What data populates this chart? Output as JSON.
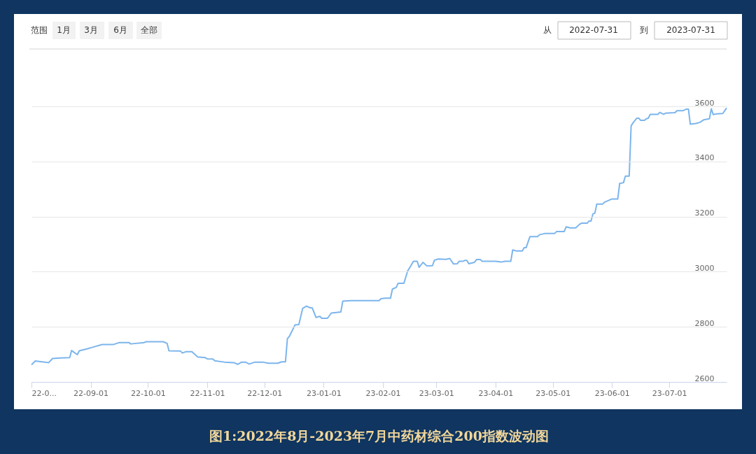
{
  "chart_data": {
    "type": "line",
    "title": "图1:2022年8月-2023年7月中药材综合200指数波动图",
    "annotations": [
      "范围",
      "1月",
      "3月",
      "6月",
      "全部",
      "从",
      "2022-07-31",
      "到",
      "2023-07-31"
    ],
    "xlim": [
      "2022-08-01",
      "2023-07-31"
    ],
    "xticks": [
      {
        "value": "2022-08-01",
        "label": "22-0..."
      },
      {
        "value": "2022-09-01",
        "label": "22-09-01"
      },
      {
        "value": "2022-10-01",
        "label": "22-10-01"
      },
      {
        "value": "2022-11-01",
        "label": "22-11-01"
      },
      {
        "value": "2022-12-01",
        "label": "22-12-01"
      },
      {
        "value": "2023-01-01",
        "label": "23-01-01"
      },
      {
        "value": "2023-02-01",
        "label": "23-02-01"
      },
      {
        "value": "2023-03-01",
        "label": "23-03-01"
      },
      {
        "value": "2023-04-01",
        "label": "23-04-01"
      },
      {
        "value": "2023-05-01",
        "label": "23-05-01"
      },
      {
        "value": "2023-06-01",
        "label": "23-06-01"
      },
      {
        "value": "2023-07-01",
        "label": "23-07-01"
      }
    ],
    "ylim": [
      2600,
      3600
    ],
    "yticks": [
      2600,
      2800,
      3000,
      3200,
      3400,
      3600
    ],
    "grid": "y",
    "legend": false,
    "marker": "none",
    "line_style": "solid",
    "x": [
      "2022-08-01",
      "2022-08-03",
      "2022-08-08",
      "2022-08-10",
      "2022-08-12",
      "2022-08-16",
      "2022-08-21",
      "2022-08-22",
      "2022-08-25",
      "2022-08-26",
      "2022-08-30",
      "2022-09-02",
      "2022-09-07",
      "2022-09-13",
      "2022-09-16",
      "2022-09-21",
      "2022-09-22",
      "2022-09-29",
      "2022-09-30",
      "2022-10-09",
      "2022-10-11",
      "2022-10-12",
      "2022-10-18",
      "2022-10-19",
      "2022-10-21",
      "2022-10-24",
      "2022-10-27",
      "2022-10-31",
      "2022-11-01",
      "2022-11-04",
      "2022-11-05",
      "2022-11-10",
      "2022-11-15",
      "2022-11-17",
      "2022-11-19",
      "2022-11-21",
      "2022-11-23",
      "2022-11-26",
      "2022-11-30",
      "2022-12-03",
      "2022-12-08",
      "2022-12-10",
      "2022-12-12",
      "2022-12-13",
      "2022-12-14",
      "2022-12-17",
      "2022-12-19",
      "2022-12-21",
      "2022-12-23",
      "2022-12-25",
      "2022-12-26",
      "2022-12-28",
      "2022-12-30",
      "2022-12-31",
      "2023-01-03",
      "2023-01-05",
      "2023-01-10",
      "2023-01-11",
      "2023-01-15",
      "2023-01-30",
      "2023-01-31",
      "2023-02-02",
      "2023-02-05",
      "2023-02-06",
      "2023-02-08",
      "2023-02-09",
      "2023-02-12",
      "2023-02-14",
      "2023-02-15",
      "2023-02-17",
      "2023-02-19",
      "2023-02-20",
      "2023-02-22",
      "2023-02-24",
      "2023-02-27",
      "2023-02-28",
      "2023-03-02",
      "2023-03-06",
      "2023-03-08",
      "2023-03-10",
      "2023-03-12",
      "2023-03-13",
      "2023-03-15",
      "2023-03-16",
      "2023-03-17",
      "2023-03-18",
      "2023-03-21",
      "2023-03-22",
      "2023-03-24",
      "2023-03-25",
      "2023-04-01",
      "2023-04-04",
      "2023-04-06",
      "2023-04-09",
      "2023-04-10",
      "2023-04-12",
      "2023-04-15",
      "2023-04-16",
      "2023-04-17",
      "2023-04-19",
      "2023-04-23",
      "2023-04-24",
      "2023-04-27",
      "2023-05-02",
      "2023-05-03",
      "2023-05-07",
      "2023-05-08",
      "2023-05-10",
      "2023-05-13",
      "2023-05-15",
      "2023-05-16",
      "2023-05-19",
      "2023-05-20",
      "2023-05-21",
      "2023-05-22",
      "2023-05-23",
      "2023-05-24",
      "2023-05-27",
      "2023-05-28",
      "2023-06-01",
      "2023-06-04",
      "2023-06-05",
      "2023-06-07",
      "2023-06-08",
      "2023-06-10",
      "2023-06-11",
      "2023-06-12",
      "2023-06-14",
      "2023-06-15",
      "2023-06-16",
      "2023-06-18",
      "2023-06-19",
      "2023-06-20",
      "2023-06-21",
      "2023-06-25",
      "2023-06-26",
      "2023-06-28",
      "2023-06-29",
      "2023-07-04",
      "2023-07-05",
      "2023-07-08",
      "2023-07-10",
      "2023-07-11",
      "2023-07-12",
      "2023-07-15",
      "2023-07-17",
      "2023-07-19",
      "2023-07-22",
      "2023-07-23",
      "2023-07-24",
      "2023-07-26",
      "2023-07-29",
      "2023-07-31"
    ],
    "series": [
      {
        "color": "#7cb5ec",
        "values": [
          2662,
          2676,
          2672,
          2670,
          2685,
          2687,
          2688,
          2714,
          2699,
          2713,
          2720,
          2726,
          2736,
          2736,
          2743,
          2743,
          2738,
          2743,
          2746,
          2746,
          2740,
          2713,
          2712,
          2705,
          2710,
          2710,
          2691,
          2688,
          2684,
          2683,
          2677,
          2672,
          2670,
          2664,
          2672,
          2672,
          2665,
          2672,
          2672,
          2668,
          2668,
          2673,
          2673,
          2757,
          2765,
          2807,
          2808,
          2867,
          2875,
          2869,
          2869,
          2834,
          2838,
          2831,
          2831,
          2850,
          2854,
          2893,
          2895,
          2895,
          2902,
          2904,
          2904,
          2937,
          2943,
          2958,
          2958,
          3003,
          3014,
          3038,
          3038,
          3016,
          3034,
          3021,
          3022,
          3042,
          3046,
          3045,
          3048,
          3028,
          3029,
          3038,
          3038,
          3041,
          3041,
          3029,
          3034,
          3044,
          3044,
          3038,
          3038,
          3035,
          3038,
          3038,
          3079,
          3075,
          3075,
          3087,
          3087,
          3127,
          3127,
          3134,
          3139,
          3139,
          3146,
          3146,
          3163,
          3159,
          3159,
          3172,
          3176,
          3176,
          3184,
          3184,
          3210,
          3212,
          3245,
          3245,
          3252,
          3264,
          3264,
          3320,
          3323,
          3347,
          3347,
          3529,
          3540,
          3557,
          3557,
          3549,
          3549,
          3555,
          3557,
          3571,
          3571,
          3578,
          3571,
          3575,
          3577,
          3584,
          3584,
          3590,
          3590,
          3535,
          3538,
          3542,
          3551,
          3555,
          3591,
          3570,
          3573,
          3574,
          3594
        ]
      }
    ]
  }
}
